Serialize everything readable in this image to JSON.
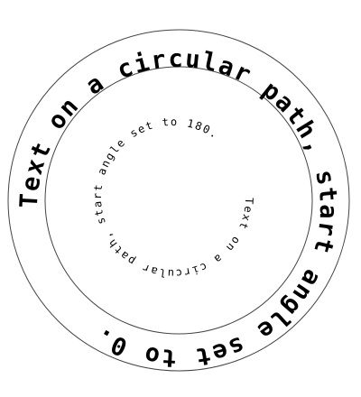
{
  "outer_caption": "Text on a circular path, start angle set to 0.",
  "inner_caption": "Text on a circular path, start angle set to 180.",
  "colors": {
    "background": "#ffffff",
    "text": "#000000",
    "ring_stroke": "#444444"
  }
}
